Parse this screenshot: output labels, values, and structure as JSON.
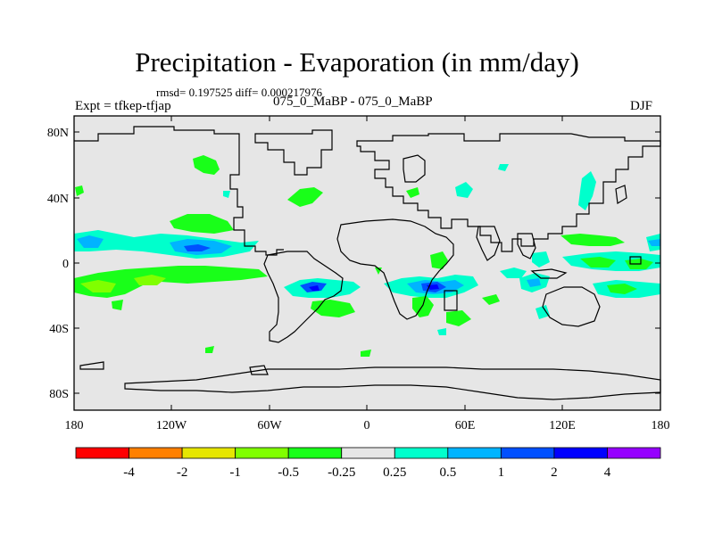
{
  "title": "Precipitation - Evaporation (in mm/day)",
  "stats": "rmsd= 0.197525  diff= 0.000217976",
  "expt": "Expt = tfkep-tfjap",
  "cases": "075_0_MaBP - 075_0_MaBP",
  "season": "DJF",
  "y_ticks": [
    "80N",
    "40N",
    "0",
    "40S",
    "80S"
  ],
  "x_ticks": [
    "180",
    "120W",
    "60W",
    "0",
    "60E",
    "120E",
    "180"
  ],
  "colorbar": {
    "colors": [
      "#ff0000",
      "#ff8000",
      "#e6e600",
      "#80ff00",
      "#19ff19",
      "#e6e6e6",
      "#00ffcc",
      "#00b4ff",
      "#0050ff",
      "#0000ff",
      "#9600ff"
    ],
    "labels": [
      "-4",
      "-2",
      "-1",
      "-0.5",
      "-0.25",
      "0.25",
      "0.5",
      "1",
      "2",
      "4"
    ]
  },
  "colors": {
    "background": "#e6e6e6",
    "dry_light": "#19ff19",
    "dry_strong": "#80ff00",
    "wet_light": "#00ffcc",
    "wet_mid": "#00b4ff",
    "wet_strong": "#0000ff"
  }
}
